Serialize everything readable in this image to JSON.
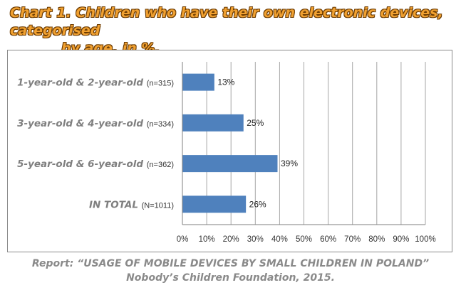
{
  "title_line1": "Chart 1. Children who have their own electronic devices, categorised",
  "title_line2": "by age, in %.",
  "source_line1": "Report: “USAGE OF MOBILE DEVICES BY SMALL CHILDREN IN POLAND”",
  "source_line2": "Nobody’s Children Foundation, 2015.",
  "chart_data": {
    "type": "bar",
    "orientation": "horizontal",
    "categories": [
      {
        "label": "1-year-old & 2-year-old",
        "n": "(n=315)"
      },
      {
        "label": "3-year-old & 4-year-old",
        "n": "(n=334)"
      },
      {
        "label": "5-year-old & 6-year-old",
        "n": "(n=362)"
      },
      {
        "label": "IN TOTAL",
        "n": "(N=1011)"
      }
    ],
    "values": [
      13,
      25,
      39,
      26
    ],
    "value_labels": [
      "13%",
      "25%",
      "39%",
      "26%"
    ],
    "xlim": [
      0,
      100
    ],
    "xticks": [
      "0%",
      "10%",
      "20%",
      "30%",
      "40%",
      "50%",
      "60%",
      "70%",
      "80%",
      "90%",
      "100%"
    ],
    "grid": "vertical",
    "bar_color": "#4f81bd"
  }
}
